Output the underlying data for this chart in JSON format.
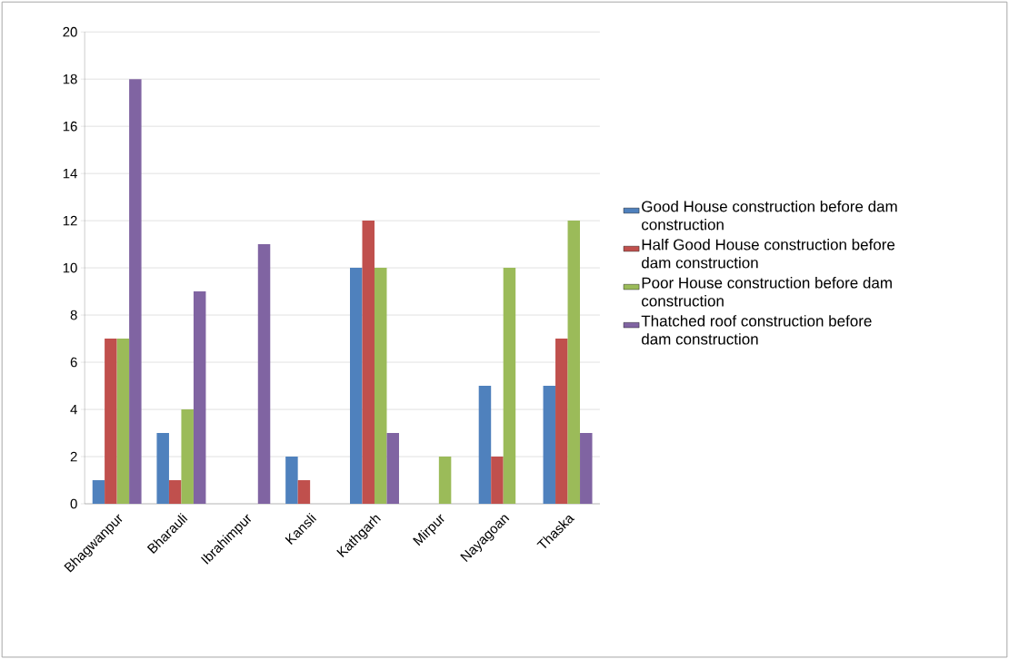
{
  "chart_data": {
    "type": "bar",
    "categories": [
      "Bhagwanpur",
      "Bharauli",
      "Ibrahimpur",
      "Kansli",
      "Kathgarh",
      "Mirpur",
      "Nayagoan",
      "Thaska"
    ],
    "series": [
      {
        "name": "Good House construction before dam construction",
        "color": "#4f81bd",
        "values": [
          1,
          3,
          0,
          2,
          10,
          0,
          5,
          5
        ]
      },
      {
        "name": "Half Good House construction before dam construction",
        "color": "#c0504d",
        "values": [
          7,
          1,
          0,
          1,
          12,
          0,
          2,
          7
        ]
      },
      {
        "name": "Poor House construction before dam construction",
        "color": "#9bbb59",
        "values": [
          7,
          4,
          0,
          0,
          10,
          2,
          10,
          12
        ]
      },
      {
        "name": "Thatched roof construction before dam construction",
        "color": "#8064a2",
        "values": [
          18,
          9,
          11,
          0,
          3,
          0,
          0,
          3
        ]
      }
    ],
    "ylim": [
      0,
      20
    ],
    "yticks": [
      0,
      2,
      4,
      6,
      8,
      10,
      12,
      14,
      16,
      18,
      20
    ],
    "grid": "y",
    "legend": "right"
  }
}
